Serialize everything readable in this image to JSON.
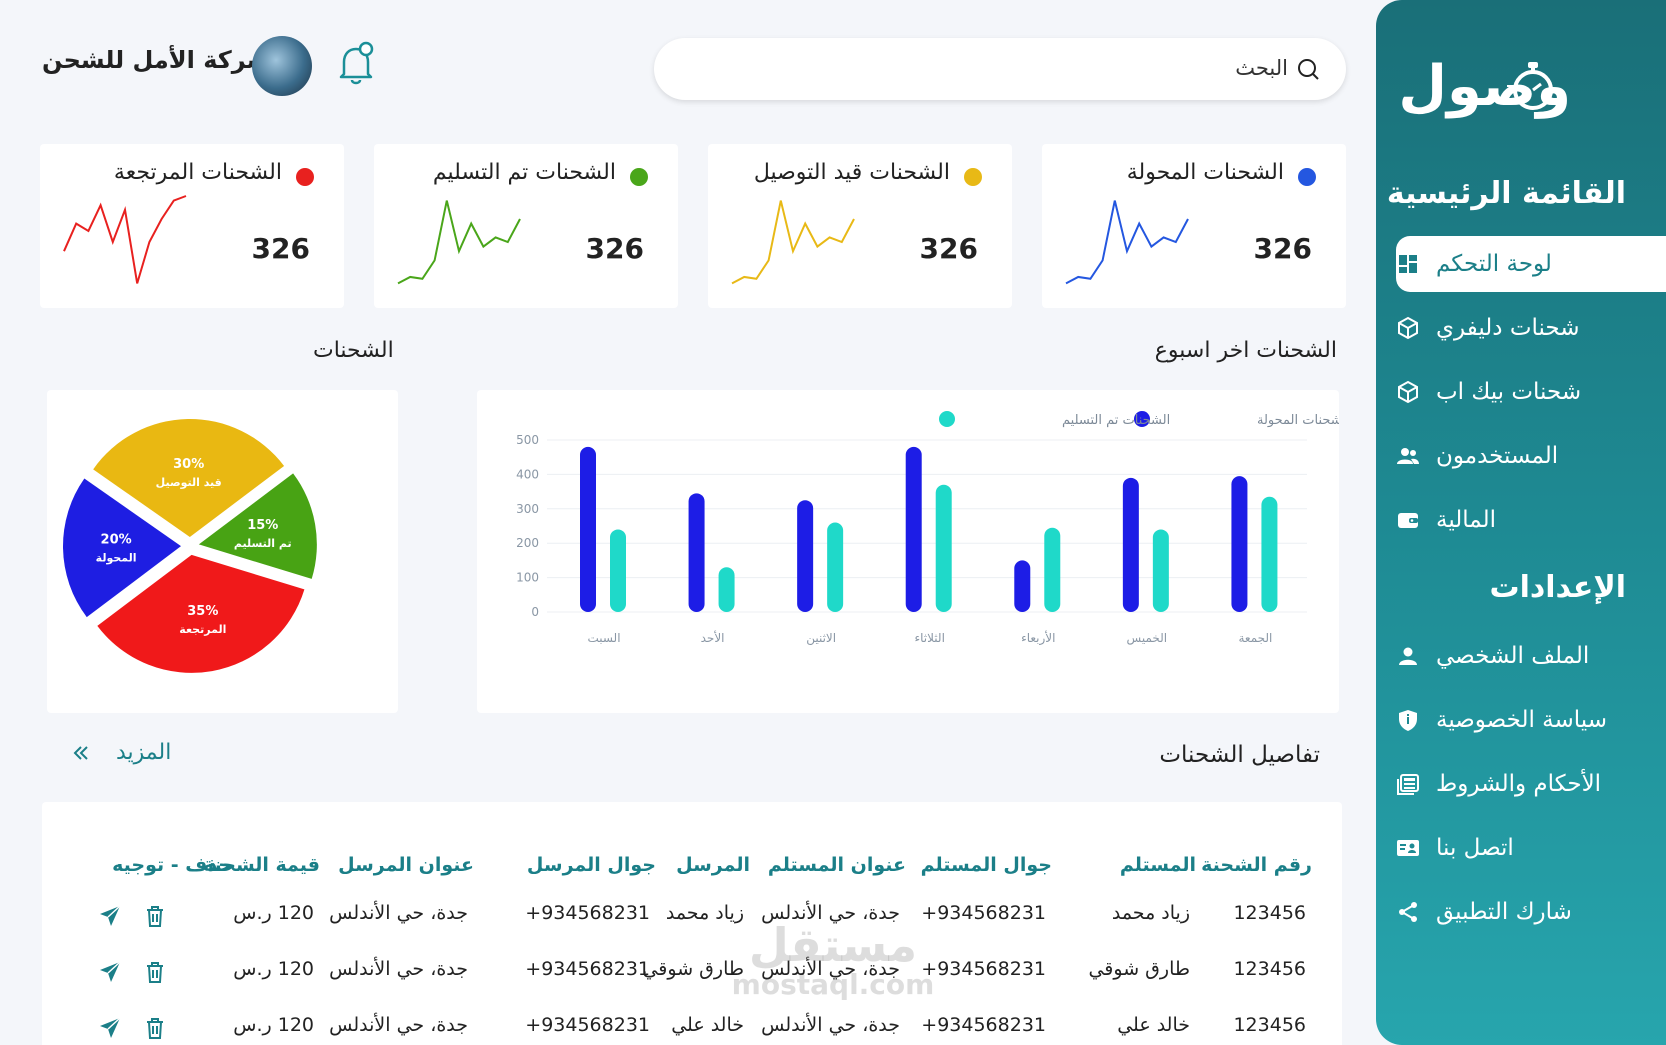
{
  "header": {
    "company": "شركة الأمل للشحن",
    "search_label": "البحث"
  },
  "brand": {
    "logo_text": "وصول"
  },
  "sidebar": {
    "main_title": "القائمة الرئيسية",
    "items": [
      {
        "label": "لوحة التحكم",
        "icon": "dashboard-icon",
        "active": true
      },
      {
        "label": "شحنات دليفري",
        "icon": "box-icon"
      },
      {
        "label": "شحنات بيك اب",
        "icon": "box-icon"
      },
      {
        "label": "المستخدمون",
        "icon": "users-icon"
      },
      {
        "label": "المالية",
        "icon": "wallet-icon"
      }
    ],
    "settings_title": "الإعدادات",
    "settings_items": [
      {
        "label": "الملف الشخصي",
        "icon": "user-icon"
      },
      {
        "label": "سياسة الخصوصية",
        "icon": "shield-icon"
      },
      {
        "label": "الأحكام والشروط",
        "icon": "document-icon"
      },
      {
        "label": "اتصل بنا",
        "icon": "contact-card-icon"
      },
      {
        "label": "شارك التطبيق",
        "icon": "share-icon"
      }
    ]
  },
  "stats": [
    {
      "label": "الشحنات المحولة",
      "value": "326",
      "color": "#2457e0",
      "spark": [
        5,
        12,
        10,
        30,
        95,
        40,
        70,
        45,
        55,
        50,
        75
      ]
    },
    {
      "label": "الشحنات قيد التوصيل",
      "value": "326",
      "color": "#e8b916",
      "spark": [
        5,
        12,
        10,
        30,
        95,
        40,
        70,
        45,
        55,
        50,
        75
      ]
    },
    {
      "label": "الشحنات تم التسليم",
      "value": "326",
      "color": "#4aa61a",
      "spark": [
        5,
        12,
        10,
        30,
        95,
        40,
        70,
        45,
        55,
        50,
        75
      ]
    },
    {
      "label": "الشحنات  المرتجعة",
      "value": "326",
      "color": "#e8211f",
      "spark": [
        40,
        70,
        62,
        90,
        50,
        85,
        5,
        50,
        75,
        95,
        100
      ]
    }
  ],
  "weekly_title": "الشحنات اخر اسبوع",
  "pie_title": "الشحنات",
  "chart_data": [
    {
      "type": "bar",
      "categories": [
        "السبت",
        "الأحد",
        "الاثنين",
        "الثلاثاء",
        "الأربعاء",
        "الخميس",
        "الجمعة"
      ],
      "series": [
        {
          "name": "الشحنات المحولة",
          "values": [
            480,
            345,
            325,
            480,
            150,
            390,
            395
          ],
          "color": "#1d1de6"
        },
        {
          "name": "الشحنات تم التسليم",
          "values": [
            240,
            130,
            260,
            370,
            245,
            240,
            335
          ],
          "color": "#1fd9c9"
        }
      ],
      "ylim": [
        0,
        500
      ],
      "yticks": [
        0,
        100,
        200,
        300,
        400,
        500
      ],
      "grid": true,
      "legend": "top-right"
    },
    {
      "type": "pie",
      "slices": [
        {
          "label": "قيد التوصيل",
          "value": 30,
          "text": "30%",
          "color": "#e9b812"
        },
        {
          "label": "تم التسليم",
          "value": 15,
          "text": "15%",
          "color": "#48a314"
        },
        {
          "label": "المرتجعة",
          "value": 35,
          "text": "35%",
          "color": "#f0191a"
        },
        {
          "label": "المحولة",
          "value": 20,
          "text": "20%",
          "color": "#1e1ee2"
        }
      ]
    }
  ],
  "details": {
    "title": "تفاصيل الشحنات",
    "more_label": "المزيد",
    "columns": [
      "رقم الشحنة",
      "المستلم",
      "جوال المستلم",
      "عنوان المستلم",
      "المرسل",
      "جوال المرسل",
      "عنوان المرسل",
      "قيمة الشحنة",
      "حذف - توجيه"
    ],
    "rows": [
      [
        "123456",
        "زياد محمد",
        "+934568231",
        "جدة، حي الأندلس",
        "زياد محمد",
        "+934568231",
        "جدة، حي الأندلس",
        "120 ر.س"
      ],
      [
        "123456",
        "طارق شوقي",
        "+934568231",
        "جدة، حي الأندلس",
        "طارق شوقي",
        "+934568231",
        "جدة، حي الأندلس",
        "120 ر.س"
      ],
      [
        "123456",
        "خالد علي",
        "+934568231",
        "جدة، حي الأندلس",
        "خالد علي",
        "+934568231",
        "جدة، حي الأندلس",
        "120 ر.س"
      ]
    ]
  },
  "watermark": {
    "line1": "مستقل",
    "line2": "mostaql.com"
  }
}
